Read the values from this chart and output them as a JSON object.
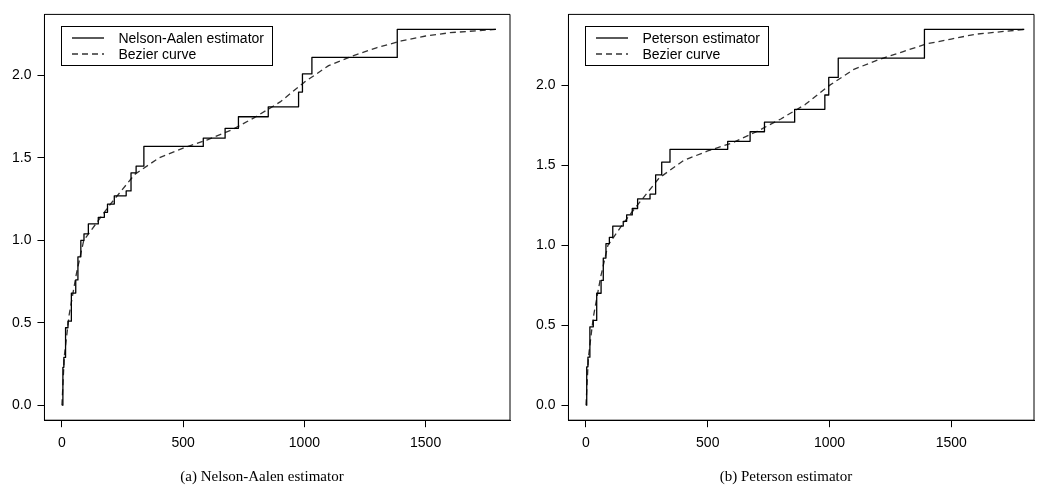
{
  "chart_data": [
    {
      "type": "step",
      "annotations": [
        "(a)  Nelson-Aalen estimator"
      ],
      "legend": "top left",
      "grid": false,
      "xlim": [
        -72,
        1848
      ],
      "xticks": [
        0,
        500,
        1000,
        1500
      ],
      "ylim": [
        -0.091,
        2.371
      ],
      "yticks": [
        {
          "value": 0,
          "label": "0.0"
        },
        {
          "value": 0.5,
          "label": "0.5"
        },
        {
          "value": 1,
          "label": "1.0"
        },
        {
          "value": 1.5,
          "label": "1.5"
        },
        {
          "value": 2,
          "label": "2.0"
        }
      ],
      "series": [
        {
          "name": "Nelson-Aalen estimator",
          "type": "step",
          "color": "#000000",
          "line_style": "solid",
          "x": [
            0,
            4,
            8,
            15,
            25,
            39,
            57,
            66,
            78,
            91,
            109,
            150,
            175,
            188,
            216,
            265,
            285,
            306,
            338,
            583,
            673,
            728,
            851,
            976,
            992,
            1031,
            1383,
            1790
          ],
          "values": [
            0,
            0.23,
            0.29,
            0.47,
            0.51,
            0.68,
            0.76,
            0.9,
            1.0,
            1.04,
            1.1,
            1.14,
            1.17,
            1.22,
            1.27,
            1.3,
            1.41,
            1.45,
            1.57,
            1.62,
            1.68,
            1.75,
            1.81,
            1.9,
            2.01,
            2.11,
            2.28,
            2.28
          ]
        },
        {
          "name": "Bezier curve",
          "type": "line",
          "color": "#333333",
          "line_style": "dashed",
          "x": [
            0,
            10,
            30,
            60,
            90,
            150,
            200,
            300,
            400,
            500,
            600,
            700,
            800,
            900,
            1000,
            1100,
            1200,
            1300,
            1400,
            1500,
            1600,
            1790
          ],
          "values": [
            0,
            0.3,
            0.55,
            0.8,
            1.0,
            1.12,
            1.22,
            1.4,
            1.5,
            1.56,
            1.61,
            1.67,
            1.75,
            1.84,
            1.96,
            2.06,
            2.12,
            2.17,
            2.21,
            2.24,
            2.26,
            2.28
          ]
        }
      ]
    },
    {
      "type": "step",
      "annotations": [
        "(b)  Peterson estimator"
      ],
      "legend": "top left",
      "grid": false,
      "xlim": [
        -72,
        1840
      ],
      "xticks": [
        0,
        500,
        1000,
        1500
      ],
      "ylim": [
        -0.094,
        2.444
      ],
      "yticks": [
        {
          "value": 0,
          "label": "0.0"
        },
        {
          "value": 0.5,
          "label": "0.5"
        },
        {
          "value": 1,
          "label": "1.0"
        },
        {
          "value": 1.5,
          "label": "1.5"
        },
        {
          "value": 2,
          "label": "2.0"
        }
      ],
      "series": [
        {
          "name": "Peterson estimator",
          "type": "step",
          "color": "#000000",
          "line_style": "solid",
          "x": [
            0,
            3,
            8,
            16,
            30,
            44,
            62,
            71,
            82,
            96,
            110,
            153,
            167,
            190,
            212,
            263,
            286,
            311,
            345,
            582,
            674,
            733,
            857,
            981,
            997,
            1036,
            1390,
            1800
          ],
          "values": [
            0,
            0.24,
            0.3,
            0.49,
            0.53,
            0.7,
            0.78,
            0.92,
            1.01,
            1.05,
            1.12,
            1.15,
            1.19,
            1.23,
            1.29,
            1.32,
            1.44,
            1.52,
            1.6,
            1.65,
            1.71,
            1.77,
            1.85,
            1.94,
            2.05,
            2.17,
            2.35,
            2.35
          ]
        },
        {
          "name": "Bezier curve",
          "type": "line",
          "color": "#333333",
          "line_style": "dashed",
          "x": [
            0,
            10,
            30,
            60,
            90,
            150,
            200,
            300,
            400,
            500,
            600,
            700,
            800,
            900,
            1000,
            1100,
            1200,
            1300,
            1400,
            1500,
            1600,
            1800
          ],
          "values": [
            0,
            0.3,
            0.55,
            0.8,
            1.0,
            1.13,
            1.23,
            1.42,
            1.53,
            1.59,
            1.64,
            1.71,
            1.79,
            1.88,
            2.0,
            2.1,
            2.16,
            2.21,
            2.26,
            2.29,
            2.32,
            2.35
          ]
        }
      ]
    }
  ]
}
